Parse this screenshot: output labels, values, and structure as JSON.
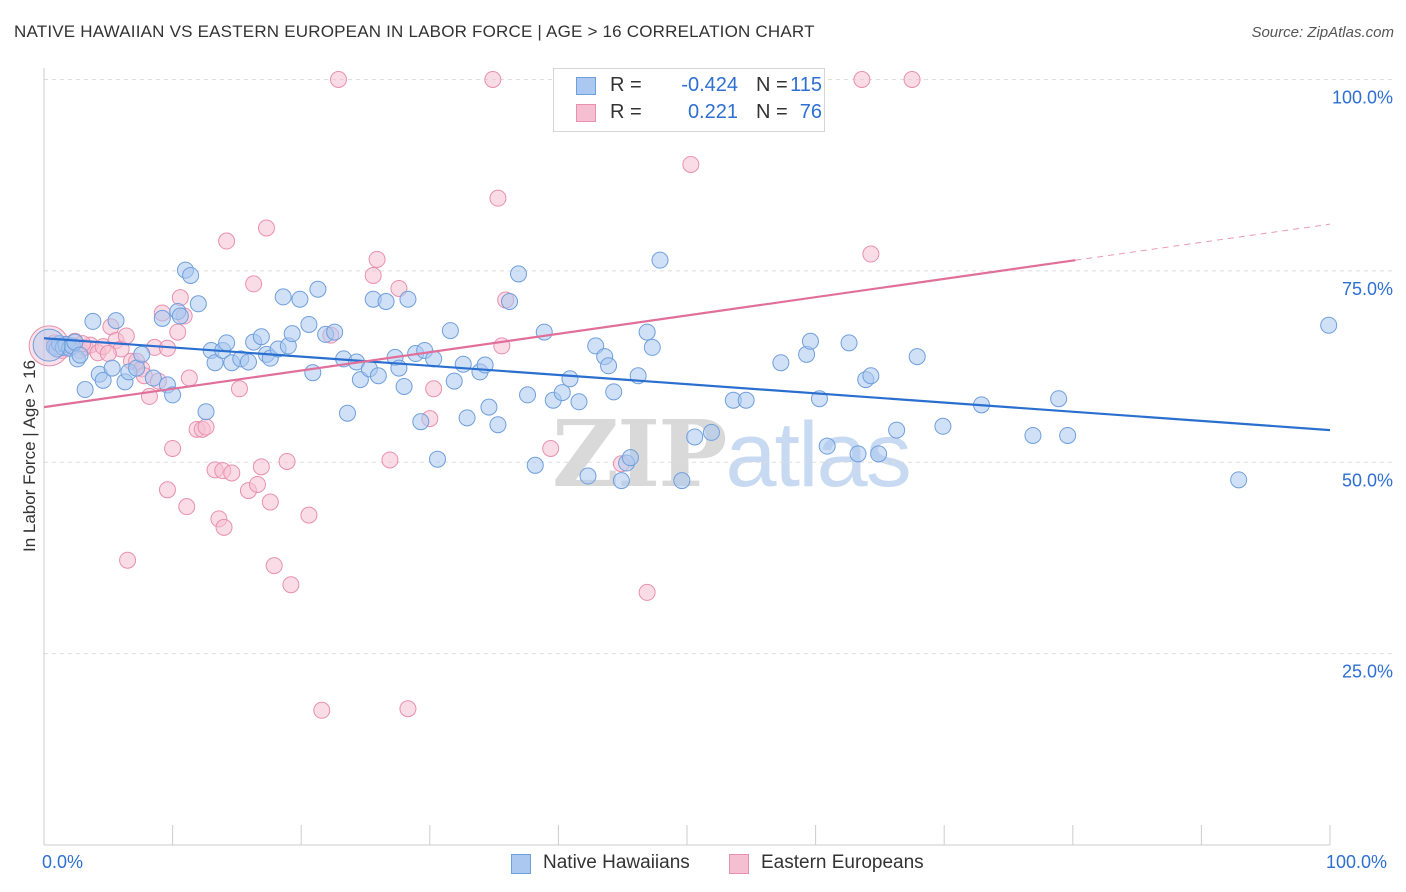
{
  "header": {
    "title": "NATIVE HAWAIIAN VS EASTERN EUROPEAN IN LABOR FORCE | AGE > 16 CORRELATION CHART",
    "source": "Source: ZipAtlas.com"
  },
  "watermark": {
    "zip": "ZIP",
    "atlas": "atlas"
  },
  "legend": {
    "rows": [
      {
        "r_label": "R =",
        "r_value": "-0.424",
        "n_label": "N =",
        "n_value": "115"
      },
      {
        "r_label": "R =",
        "r_value": "0.221",
        "n_label": "N =",
        "n_value": "76"
      }
    ]
  },
  "colors": {
    "blue_fill": "#aac8f0",
    "blue_stroke": "#6f9fdc",
    "blue_line": "#2a6fcf",
    "pink_fill": "#f6bfd1",
    "pink_stroke": "#e890ae",
    "pink_line": "#e0709a",
    "grid": "#dddddd",
    "tick_text": "#2d6fd2"
  },
  "chart_data": {
    "type": "scatter",
    "title": "NATIVE HAWAIIAN VS EASTERN EUROPEAN IN LABOR FORCE | AGE > 16 CORRELATION CHART",
    "xlabel": "",
    "ylabel": "In Labor Force | Age > 16",
    "xlim": [
      0,
      100
    ],
    "ylim": [
      0,
      104
    ],
    "x_tick_labels": [
      "0.0%",
      "100.0%"
    ],
    "y_ticks": [
      25,
      50,
      75,
      100
    ],
    "y_tick_labels": [
      "25.0%",
      "50.0%",
      "75.0%",
      "100.0%"
    ],
    "grid": true,
    "legend_position": "top-center",
    "series": [
      {
        "name": "Native Hawaiians",
        "color": "#aac8f0",
        "r": -0.424,
        "n": 115,
        "trend": {
          "x": [
            0,
            100
          ],
          "y": [
            66.2,
            54.2
          ]
        },
        "points": [
          [
            0.8,
            65.1
          ],
          [
            1.0,
            64.8
          ],
          [
            1.2,
            65.5
          ],
          [
            1.5,
            65.0
          ],
          [
            1.7,
            65.4
          ],
          [
            2.0,
            64.9
          ],
          [
            2.2,
            65.2
          ],
          [
            2.4,
            65.7
          ],
          [
            2.6,
            63.5
          ],
          [
            2.8,
            64.0
          ],
          [
            3.2,
            59.5
          ],
          [
            3.8,
            68.4
          ],
          [
            4.3,
            61.5
          ],
          [
            4.6,
            60.7
          ],
          [
            5.3,
            62.3
          ],
          [
            5.6,
            68.5
          ],
          [
            6.3,
            60.5
          ],
          [
            6.6,
            61.8
          ],
          [
            7.2,
            62.3
          ],
          [
            7.6,
            64.1
          ],
          [
            8.5,
            61.0
          ],
          [
            9.2,
            68.8
          ],
          [
            9.6,
            60.1
          ],
          [
            10.0,
            58.8
          ],
          [
            10.4,
            69.7
          ],
          [
            10.6,
            69.1
          ],
          [
            11.0,
            75.1
          ],
          [
            11.4,
            74.4
          ],
          [
            12.0,
            70.7
          ],
          [
            12.6,
            56.6
          ],
          [
            13.0,
            64.6
          ],
          [
            13.3,
            63.0
          ],
          [
            13.9,
            64.6
          ],
          [
            14.2,
            65.6
          ],
          [
            14.6,
            63.0
          ],
          [
            15.3,
            63.5
          ],
          [
            15.9,
            63.1
          ],
          [
            16.3,
            65.7
          ],
          [
            16.9,
            66.4
          ],
          [
            17.3,
            64.1
          ],
          [
            17.6,
            63.6
          ],
          [
            18.2,
            64.8
          ],
          [
            18.6,
            71.6
          ],
          [
            19.0,
            65.2
          ],
          [
            19.3,
            66.8
          ],
          [
            19.9,
            71.3
          ],
          [
            20.6,
            68.0
          ],
          [
            20.9,
            61.7
          ],
          [
            21.3,
            72.6
          ],
          [
            21.9,
            66.7
          ],
          [
            22.6,
            67.0
          ],
          [
            23.3,
            63.5
          ],
          [
            23.6,
            56.4
          ],
          [
            24.3,
            63.1
          ],
          [
            24.6,
            60.8
          ],
          [
            25.3,
            62.2
          ],
          [
            25.6,
            71.3
          ],
          [
            26.0,
            61.3
          ],
          [
            26.6,
            71.0
          ],
          [
            27.3,
            63.7
          ],
          [
            27.6,
            62.3
          ],
          [
            28.0,
            59.9
          ],
          [
            28.3,
            71.3
          ],
          [
            28.9,
            64.2
          ],
          [
            29.3,
            55.3
          ],
          [
            29.6,
            64.6
          ],
          [
            30.3,
            63.5
          ],
          [
            30.6,
            50.4
          ],
          [
            31.6,
            67.2
          ],
          [
            31.9,
            60.6
          ],
          [
            32.6,
            62.8
          ],
          [
            32.9,
            55.8
          ],
          [
            33.9,
            61.8
          ],
          [
            34.3,
            62.7
          ],
          [
            34.6,
            57.2
          ],
          [
            35.3,
            54.9
          ],
          [
            36.2,
            71.0
          ],
          [
            36.9,
            74.6
          ],
          [
            37.6,
            58.8
          ],
          [
            38.2,
            49.6
          ],
          [
            38.9,
            67.0
          ],
          [
            39.6,
            58.1
          ],
          [
            40.3,
            59.1
          ],
          [
            40.9,
            60.9
          ],
          [
            41.6,
            57.9
          ],
          [
            42.3,
            48.2
          ],
          [
            42.9,
            65.2
          ],
          [
            43.6,
            63.8
          ],
          [
            43.9,
            62.6
          ],
          [
            44.3,
            59.2
          ],
          [
            44.9,
            47.6
          ],
          [
            45.3,
            49.9
          ],
          [
            45.6,
            50.6
          ],
          [
            46.2,
            61.3
          ],
          [
            46.9,
            67.0
          ],
          [
            47.3,
            65.0
          ],
          [
            47.9,
            76.4
          ],
          [
            49.6,
            47.6
          ],
          [
            50.6,
            53.3
          ],
          [
            51.9,
            53.9
          ],
          [
            53.6,
            58.1
          ],
          [
            54.6,
            58.1
          ],
          [
            57.3,
            63.0
          ],
          [
            59.3,
            64.1
          ],
          [
            59.6,
            65.8
          ],
          [
            60.3,
            58.3
          ],
          [
            60.9,
            52.1
          ],
          [
            62.6,
            65.6
          ],
          [
            63.3,
            51.1
          ],
          [
            63.9,
            60.8
          ],
          [
            64.3,
            61.3
          ],
          [
            64.9,
            51.1
          ],
          [
            66.3,
            54.2
          ],
          [
            67.9,
            63.8
          ],
          [
            69.9,
            54.7
          ],
          [
            72.9,
            57.5
          ],
          [
            76.9,
            53.5
          ],
          [
            78.9,
            58.3
          ],
          [
            79.6,
            53.5
          ],
          [
            92.9,
            47.7
          ],
          [
            99.9,
            67.9
          ]
        ]
      },
      {
        "name": "Eastern Europeans",
        "color": "#f6bfd1",
        "r": 0.221,
        "n": 76,
        "trend": {
          "x": [
            0,
            80.2
          ],
          "y": [
            57.2,
            76.4
          ]
        },
        "trend_dashed_extension": {
          "x": [
            80.2,
            100
          ],
          "y": [
            76.4,
            81.1
          ]
        },
        "points": [
          [
            0.8,
            65.6
          ],
          [
            1.2,
            64.8
          ],
          [
            1.6,
            65.3
          ],
          [
            2.0,
            65.2
          ],
          [
            2.4,
            65.8
          ],
          [
            2.8,
            64.6
          ],
          [
            3.2,
            65.0
          ],
          [
            3.6,
            65.3
          ],
          [
            4.2,
            64.3
          ],
          [
            4.6,
            65.1
          ],
          [
            5.2,
            67.7
          ],
          [
            5.6,
            65.9
          ],
          [
            6.0,
            64.8
          ],
          [
            6.4,
            66.5
          ],
          [
            6.8,
            63.2
          ],
          [
            7.2,
            63.2
          ],
          [
            7.6,
            62.2
          ],
          [
            7.8,
            61.3
          ],
          [
            8.2,
            58.6
          ],
          [
            8.6,
            65.0
          ],
          [
            8.9,
            60.6
          ],
          [
            9.2,
            69.5
          ],
          [
            9.6,
            64.9
          ],
          [
            9.6,
            46.4
          ],
          [
            10.0,
            51.8
          ],
          [
            10.4,
            67.0
          ],
          [
            10.6,
            71.5
          ],
          [
            10.9,
            69.1
          ],
          [
            11.1,
            44.2
          ],
          [
            11.3,
            61.0
          ],
          [
            11.9,
            54.3
          ],
          [
            12.3,
            54.3
          ],
          [
            12.6,
            54.6
          ],
          [
            13.3,
            49.0
          ],
          [
            13.6,
            42.6
          ],
          [
            13.9,
            48.9
          ],
          [
            14.2,
            78.9
          ],
          [
            14.6,
            48.6
          ],
          [
            15.2,
            59.6
          ],
          [
            15.9,
            46.3
          ],
          [
            16.3,
            73.3
          ],
          [
            16.6,
            47.1
          ],
          [
            16.9,
            49.4
          ],
          [
            17.3,
            80.6
          ],
          [
            17.6,
            44.8
          ],
          [
            17.9,
            36.5
          ],
          [
            18.9,
            50.1
          ],
          [
            19.2,
            34.0
          ],
          [
            20.6,
            43.1
          ],
          [
            21.6,
            17.6
          ],
          [
            22.3,
            66.6
          ],
          [
            22.9,
            100
          ],
          [
            25.6,
            74.4
          ],
          [
            25.9,
            76.5
          ],
          [
            26.9,
            50.3
          ],
          [
            27.6,
            72.7
          ],
          [
            28.3,
            17.8
          ],
          [
            30.0,
            55.7
          ],
          [
            30.3,
            59.6
          ],
          [
            34.9,
            100
          ],
          [
            35.3,
            84.5
          ],
          [
            35.9,
            71.2
          ],
          [
            35.6,
            65.2
          ],
          [
            39.4,
            51.8
          ],
          [
            44.9,
            49.8
          ],
          [
            46.9,
            33.0
          ],
          [
            50.3,
            88.9
          ],
          [
            63.6,
            100
          ],
          [
            64.3,
            77.2
          ],
          [
            67.5,
            100
          ],
          [
            14.0,
            41.5
          ],
          [
            6.5,
            37.2
          ],
          [
            5.0,
            64.2
          ],
          [
            0.9,
            65.0
          ],
          [
            1.4,
            64.6
          ],
          [
            3.0,
            65.5
          ]
        ]
      }
    ]
  }
}
